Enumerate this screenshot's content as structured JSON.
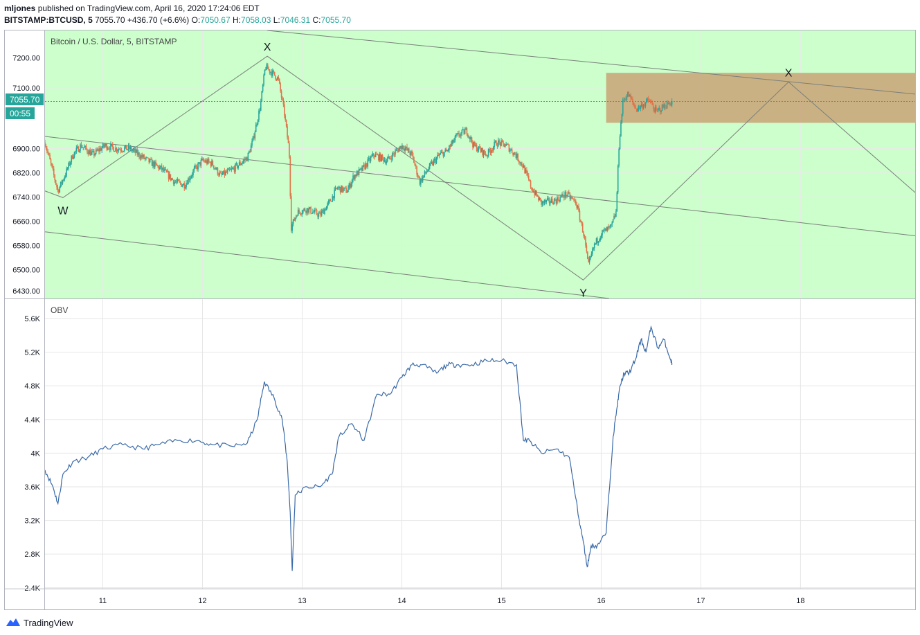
{
  "header": {
    "author": "mljones",
    "published_text": "published on TradingView.com, April 16, 2020 17:24:06 EDT",
    "symbol": "BITSTAMP:BTCUSD, 5",
    "last": "7055.70",
    "change": "+436.70 (+6.6%)",
    "o_label": "O:",
    "o_value": "7050.67",
    "h_label": "H:",
    "h_value": "7058.03",
    "l_label": "L:",
    "l_value": "7046.31",
    "c_label": "C:",
    "c_value": "7055.70"
  },
  "price_pane": {
    "legend": "Bitcoin / U.S. Dollar, 5, BITSTAMP",
    "price_tag": "7055.70",
    "countdown_tag": "00:55",
    "background_color": "#ccffcc",
    "up_color": "#26a69a",
    "down_color": "#e0744a",
    "zone_color": "#c8a377"
  },
  "obv_pane": {
    "legend": "OBV",
    "line_color": "#3a6aa8"
  },
  "footer": {
    "brand": "TradingView"
  },
  "chart_data": [
    {
      "type": "candlestick",
      "title": "Bitcoin / U.S. Dollar, 5, BITSTAMP",
      "x_tick_labels": [
        "11",
        "12",
        "13",
        "14",
        "15",
        "16",
        "17",
        "18"
      ],
      "y_ticks": [
        7200.0,
        7100.0,
        6900.0,
        6820.0,
        6740.0,
        6660.0,
        6580.0,
        6500.0,
        6430.0
      ],
      "y_tick_labels": [
        "7200.00",
        "7100.00",
        "6900.00",
        "6820.00",
        "6740.00",
        "6660.00",
        "6580.00",
        "6500.00",
        "6430.00"
      ],
      "ylim": [
        6405,
        7290
      ],
      "xlim": [
        10.42,
        19.15
      ],
      "last_price": 7055.7,
      "close_path": [
        [
          10.42,
          6920
        ],
        [
          10.55,
          6760
        ],
        [
          10.63,
          6820
        ],
        [
          10.7,
          6880
        ],
        [
          10.78,
          6910
        ],
        [
          10.9,
          6880
        ],
        [
          11.02,
          6910
        ],
        [
          11.13,
          6900
        ],
        [
          11.27,
          6900
        ],
        [
          11.45,
          6860
        ],
        [
          11.6,
          6830
        ],
        [
          11.72,
          6790
        ],
        [
          11.82,
          6780
        ],
        [
          11.92,
          6830
        ],
        [
          12.0,
          6860
        ],
        [
          12.1,
          6850
        ],
        [
          12.18,
          6810
        ],
        [
          12.3,
          6830
        ],
        [
          12.45,
          6870
        ],
        [
          12.5,
          6920
        ],
        [
          12.58,
          7040
        ],
        [
          12.63,
          7170
        ],
        [
          12.7,
          7150
        ],
        [
          12.76,
          7130
        ],
        [
          12.82,
          7020
        ],
        [
          12.87,
          6890
        ],
        [
          12.89,
          6640
        ],
        [
          12.95,
          6690
        ],
        [
          13.05,
          6700
        ],
        [
          13.18,
          6680
        ],
        [
          13.27,
          6720
        ],
        [
          13.35,
          6770
        ],
        [
          13.45,
          6760
        ],
        [
          13.52,
          6810
        ],
        [
          13.6,
          6830
        ],
        [
          13.72,
          6880
        ],
        [
          13.85,
          6860
        ],
        [
          14.0,
          6910
        ],
        [
          14.1,
          6880
        ],
        [
          14.18,
          6790
        ],
        [
          14.28,
          6840
        ],
        [
          14.38,
          6880
        ],
        [
          14.45,
          6890
        ],
        [
          14.55,
          6940
        ],
        [
          14.65,
          6960
        ],
        [
          14.72,
          6910
        ],
        [
          14.85,
          6880
        ],
        [
          14.95,
          6920
        ],
        [
          15.05,
          6910
        ],
        [
          15.14,
          6880
        ],
        [
          15.22,
          6840
        ],
        [
          15.3,
          6770
        ],
        [
          15.4,
          6720
        ],
        [
          15.55,
          6730
        ],
        [
          15.65,
          6750
        ],
        [
          15.75,
          6720
        ],
        [
          15.83,
          6610
        ],
        [
          15.87,
          6510
        ],
        [
          15.93,
          6580
        ],
        [
          16.0,
          6620
        ],
        [
          16.1,
          6640
        ],
        [
          16.15,
          6690
        ],
        [
          16.18,
          6920
        ],
        [
          16.22,
          7060
        ],
        [
          16.27,
          7080
        ],
        [
          16.35,
          7030
        ],
        [
          16.4,
          7040
        ],
        [
          16.48,
          7060
        ],
        [
          16.55,
          7020
        ],
        [
          16.63,
          7040
        ],
        [
          16.71,
          7055.7
        ]
      ],
      "annotations": [
        {
          "text": "W",
          "x": 10.6,
          "y": 6738
        },
        {
          "text": "X",
          "x": 12.65,
          "y": 7205
        },
        {
          "text": "Y",
          "x": 15.82,
          "y": 6466
        },
        {
          "text": "X",
          "x": 17.88,
          "y": 7120
        }
      ],
      "lines": [
        [
          [
            10.42,
            6760
          ],
          [
            10.6,
            6738
          ],
          [
            12.65,
            7205
          ],
          [
            15.82,
            6466
          ],
          [
            17.88,
            7120
          ],
          [
            19.15,
            6755
          ]
        ],
        [
          [
            10.42,
            6940
          ],
          [
            19.15,
            6612
          ]
        ],
        [
          [
            10.42,
            6625
          ],
          [
            16.08,
            6405
          ]
        ],
        [
          [
            12.65,
            7290
          ],
          [
            19.15,
            7080
          ]
        ]
      ],
      "zone": {
        "x": [
          16.05,
          19.15
        ],
        "y": [
          6985,
          7150
        ]
      }
    },
    {
      "type": "line",
      "title": "OBV",
      "y_ticks": [
        5600,
        5200,
        4800,
        4400,
        4000,
        3600,
        3200,
        2800,
        2400
      ],
      "y_tick_labels": [
        "5.6K",
        "5.2K",
        "4.8K",
        "4.4K",
        "4K",
        "3.6K",
        "3.2K",
        "2.8K",
        "2.4K"
      ],
      "ylim": [
        2390,
        5830
      ],
      "xlim": [
        10.42,
        19.15
      ],
      "x": [
        10.42,
        10.5,
        10.55,
        10.6,
        10.7,
        10.85,
        11.0,
        11.2,
        11.4,
        11.55,
        11.75,
        11.95,
        12.1,
        12.3,
        12.45,
        12.55,
        12.62,
        12.72,
        12.8,
        12.85,
        12.88,
        12.9,
        12.93,
        13.05,
        13.18,
        13.3,
        13.37,
        13.5,
        13.62,
        13.75,
        13.88,
        14.0,
        14.1,
        14.2,
        14.35,
        14.45,
        14.55,
        14.7,
        14.85,
        15.0,
        15.15,
        15.22,
        15.28,
        15.4,
        15.55,
        15.68,
        15.78,
        15.82,
        15.86,
        15.9,
        15.96,
        16.05,
        16.12,
        16.16,
        16.19,
        16.23,
        16.28,
        16.34,
        16.4,
        16.45,
        16.5,
        16.57,
        16.63,
        16.7,
        16.71
      ],
      "values": [
        3800,
        3600,
        3400,
        3750,
        3900,
        3950,
        4050,
        4100,
        4050,
        4100,
        4150,
        4150,
        4100,
        4080,
        4120,
        4400,
        4850,
        4650,
        4400,
        3900,
        3300,
        2600,
        3500,
        3600,
        3600,
        3750,
        4200,
        4350,
        4150,
        4700,
        4700,
        4900,
        5050,
        5050,
        4950,
        5050,
        5050,
        5050,
        5100,
        5100,
        5050,
        4150,
        4150,
        4000,
        4050,
        3950,
        3200,
        2950,
        2650,
        2900,
        2900,
        3050,
        4200,
        4550,
        4800,
        4950,
        4950,
        5100,
        5350,
        5200,
        5500,
        5250,
        5350,
        5100,
        5070
      ]
    }
  ]
}
